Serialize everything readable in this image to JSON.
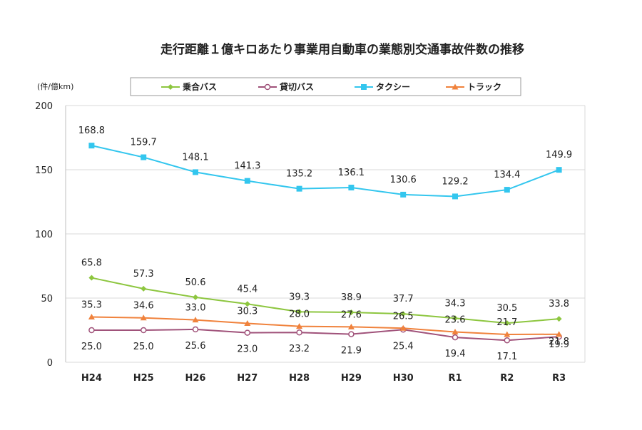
{
  "chart_data": {
    "type": "line",
    "title": "走行距離１億キロあたり事業用自動車の業態別交通事故件数の推移",
    "ylabel": "(件/億km)",
    "xlabel": "",
    "ylim": [
      0,
      200
    ],
    "yticks": [
      0,
      50,
      100,
      150,
      200
    ],
    "categories": [
      "H24",
      "H25",
      "H26",
      "H27",
      "H28",
      "H29",
      "H30",
      "R1",
      "R2",
      "R3"
    ],
    "legend_position": "top",
    "series": [
      {
        "name": "乗合バス",
        "color": "#8dc63f",
        "marker": "diamond",
        "values": [
          65.8,
          57.3,
          50.6,
          45.4,
          39.3,
          38.9,
          37.7,
          34.3,
          30.5,
          33.8
        ],
        "labels": [
          "65.8",
          "57.3",
          "50.6",
          "45.4",
          "39.3",
          "38.9",
          "37.7",
          "34.3",
          "30.5",
          "33.8"
        ]
      },
      {
        "name": "貸切バス",
        "color": "#a0527a",
        "marker": "circle-open",
        "values": [
          25.0,
          25.0,
          25.6,
          23.0,
          23.2,
          21.9,
          25.4,
          19.4,
          17.1,
          19.9
        ],
        "labels": [
          "25.0",
          "25.0",
          "25.6",
          "23.0",
          "23.2",
          "21.9",
          "25.4",
          "19.4",
          "17.1",
          "19.9"
        ]
      },
      {
        "name": "タクシー",
        "color": "#33c6ee",
        "marker": "square",
        "values": [
          168.8,
          159.7,
          148.1,
          141.3,
          135.2,
          136.1,
          130.6,
          129.2,
          134.4,
          149.9
        ],
        "labels": [
          "168.8",
          "159.7",
          "148.1",
          "141.3",
          "135.2",
          "136.1",
          "130.6",
          "129.2",
          "134.4",
          "149.9"
        ]
      },
      {
        "name": "トラック",
        "color": "#f0823c",
        "marker": "triangle",
        "values": [
          35.3,
          34.6,
          33.0,
          30.3,
          28.0,
          27.6,
          26.5,
          23.6,
          21.7,
          21.8
        ],
        "labels": [
          "35.3",
          "34.6",
          "33.0",
          "30.3",
          "28.0",
          "27.6",
          "26.5",
          "23.6",
          "21.7",
          "21.8"
        ]
      }
    ]
  }
}
